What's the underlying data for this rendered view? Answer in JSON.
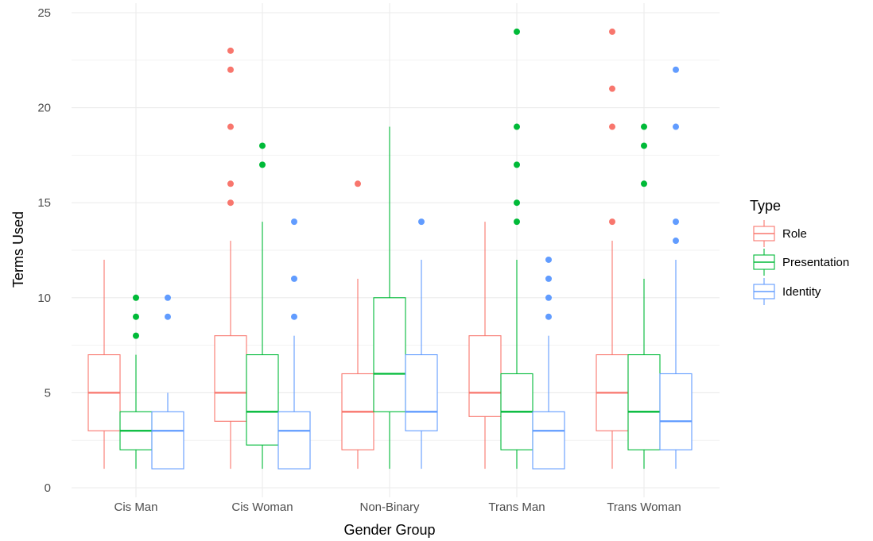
{
  "chart_data": {
    "type": "box",
    "xlabel": "Gender Group",
    "ylabel": "Terms Used",
    "ylim": [
      0,
      25
    ],
    "yticks": [
      "0",
      "5",
      "10",
      "15",
      "20",
      "25"
    ],
    "grid": true,
    "categories": [
      "Cis Man",
      "Cis Woman",
      "Non-Binary",
      "Trans Man",
      "Trans Woman"
    ],
    "legend": {
      "title": "Type",
      "placement": "right"
    },
    "series": [
      {
        "name": "Role",
        "color": "#F8766D",
        "boxes": [
          {
            "min": 1,
            "q1": 3,
            "median": 5,
            "q3": 7,
            "max": 12,
            "outliers": []
          },
          {
            "min": 1,
            "q1": 3.5,
            "median": 5,
            "q3": 8,
            "max": 13,
            "outliers": [
              15,
              16,
              19,
              22,
              23
            ]
          },
          {
            "min": 1,
            "q1": 2,
            "median": 4,
            "q3": 6,
            "max": 11,
            "outliers": [
              16
            ]
          },
          {
            "min": 1,
            "q1": 3.75,
            "median": 5,
            "q3": 8,
            "max": 14,
            "outliers": []
          },
          {
            "min": 1,
            "q1": 3,
            "median": 5,
            "q3": 7,
            "max": 13,
            "outliers": [
              14,
              19,
              21,
              24
            ]
          }
        ]
      },
      {
        "name": "Presentation",
        "color": "#00BA38",
        "boxes": [
          {
            "min": 1,
            "q1": 2,
            "median": 3,
            "q3": 4,
            "max": 7,
            "outliers": [
              8,
              9,
              10
            ]
          },
          {
            "min": 1,
            "q1": 2.25,
            "median": 4,
            "q3": 7,
            "max": 14,
            "outliers": [
              17,
              18
            ]
          },
          {
            "min": 1,
            "q1": 4,
            "median": 6,
            "q3": 10,
            "max": 19,
            "outliers": []
          },
          {
            "min": 1,
            "q1": 2,
            "median": 4,
            "q3": 6,
            "max": 12,
            "outliers": [
              14,
              15,
              17,
              19,
              24
            ]
          },
          {
            "min": 1,
            "q1": 2,
            "median": 4,
            "q3": 7,
            "max": 11,
            "outliers": [
              16,
              18,
              19
            ]
          }
        ]
      },
      {
        "name": "Identity",
        "color": "#619CFF",
        "boxes": [
          {
            "min": 1,
            "q1": 1,
            "median": 3,
            "q3": 4,
            "max": 5,
            "outliers": [
              9,
              10
            ]
          },
          {
            "min": 1,
            "q1": 1,
            "median": 3,
            "q3": 4,
            "max": 8,
            "outliers": [
              9,
              11,
              14
            ]
          },
          {
            "min": 1,
            "q1": 3,
            "median": 4,
            "q3": 7,
            "max": 12,
            "outliers": [
              14
            ]
          },
          {
            "min": 1,
            "q1": 1,
            "median": 3,
            "q3": 4,
            "max": 8,
            "outliers": [
              9,
              10,
              11,
              12
            ]
          },
          {
            "min": 1,
            "q1": 2,
            "median": 3.5,
            "q3": 6,
            "max": 12,
            "outliers": [
              13,
              14,
              19,
              22
            ]
          }
        ]
      }
    ]
  }
}
